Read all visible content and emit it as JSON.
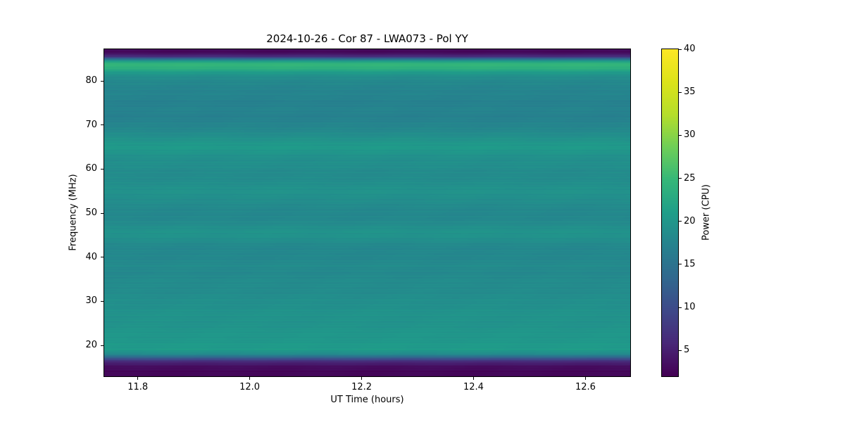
{
  "chart_data": {
    "type": "heatmap",
    "title": "2024-10-26 - Cor 87 - LWA073 - Pol YY",
    "xlabel": "UT Time (hours)",
    "ylabel": "Frequency (MHz)",
    "x_range": [
      11.74,
      12.68
    ],
    "y_range": [
      13.0,
      87.2
    ],
    "x_ticks": {
      "values": [
        11.8,
        12.0,
        12.2,
        12.4,
        12.6
      ],
      "labels": [
        "11.8",
        "12.0",
        "12.2",
        "12.4",
        "12.6"
      ]
    },
    "y_ticks": {
      "values": [
        20,
        30,
        40,
        50,
        60,
        70,
        80
      ],
      "labels": [
        "20",
        "30",
        "40",
        "50",
        "60",
        "70",
        "80"
      ]
    },
    "colorbar": {
      "label": "Power (CPU)",
      "vmin": 2,
      "vmax": 40,
      "ticks": {
        "values": [
          5,
          10,
          15,
          20,
          25,
          30,
          35,
          40
        ],
        "labels": [
          "5",
          "10",
          "15",
          "20",
          "25",
          "30",
          "35",
          "40"
        ]
      },
      "colormap": "viridis",
      "colormap_stops": [
        [
          0.0,
          "#440154"
        ],
        [
          0.1,
          "#482878"
        ],
        [
          0.2,
          "#3e4989"
        ],
        [
          0.3,
          "#31688e"
        ],
        [
          0.4,
          "#26828e"
        ],
        [
          0.5,
          "#1f9e89"
        ],
        [
          0.6,
          "#35b779"
        ],
        [
          0.7,
          "#6ece58"
        ],
        [
          0.8,
          "#b5de2b"
        ],
        [
          0.9,
          "#dce319"
        ],
        [
          1.0,
          "#fde725"
        ]
      ]
    },
    "time_independent": true,
    "frequency_profile": {
      "freq_mhz": [
        13.0,
        14.0,
        15.0,
        15.6,
        16.2,
        16.8,
        17.5,
        18.2,
        19.0,
        20.0,
        21.5,
        23.0,
        24.5,
        26.0,
        27.5,
        29.0,
        30.5,
        32.0,
        33.5,
        35.0,
        36.5,
        38.0,
        39.5,
        41.0,
        42.5,
        44.0,
        45.0,
        46.0,
        47.5,
        49.0,
        50.5,
        52.0,
        53.5,
        55.0,
        56.5,
        58.0,
        59.5,
        61.0,
        62.5,
        64.0,
        65.0,
        66.0,
        67.5,
        69.0,
        70.5,
        72.0,
        73.5,
        75.0,
        76.5,
        78.0,
        79.5,
        80.5,
        81.4,
        82.2,
        83.0,
        83.8,
        84.4,
        85.0,
        85.6,
        86.4,
        87.2
      ],
      "power_cpu": [
        2.5,
        2.5,
        3.0,
        4.0,
        5.5,
        9.0,
        15.0,
        19.0,
        20.5,
        20.5,
        20.0,
        20.0,
        19.5,
        19.5,
        19.5,
        19.0,
        19.0,
        18.5,
        18.5,
        18.5,
        18.0,
        18.5,
        18.0,
        18.0,
        18.0,
        19.0,
        19.5,
        19.5,
        18.5,
        18.0,
        18.0,
        18.5,
        19.0,
        19.5,
        19.0,
        18.5,
        18.5,
        19.0,
        19.0,
        20.0,
        20.5,
        20.0,
        19.0,
        18.0,
        17.5,
        17.0,
        17.5,
        17.0,
        17.5,
        17.5,
        18.0,
        18.5,
        19.5,
        21.5,
        24.0,
        24.5,
        22.0,
        14.0,
        6.0,
        3.0,
        2.5
      ]
    }
  }
}
